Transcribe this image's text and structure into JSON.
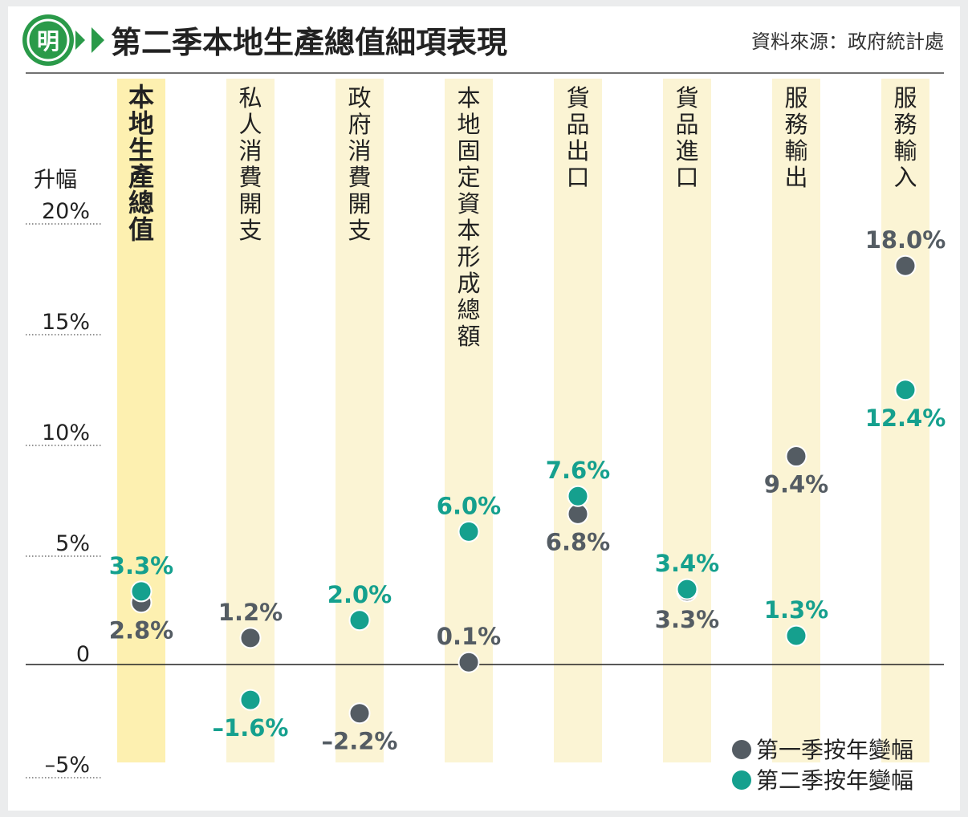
{
  "header": {
    "logo_char": "明",
    "title": "第二季本地生產總值細項表現",
    "source": "資料來源：政府統計處"
  },
  "colors": {
    "q1": "#545c63",
    "q2": "#15a08e",
    "band": "#fbf4d4",
    "band_highlight": "#fdf0b0",
    "logo_green": "#2a9a49",
    "text": "#222222"
  },
  "chart_data": {
    "type": "scatter",
    "title": "第二季本地生產總值細項表現",
    "ylabel": "升幅",
    "ylim": [
      -5,
      20
    ],
    "yticks": [
      {
        "value": 20,
        "label": "20%"
      },
      {
        "value": 15,
        "label": "15%"
      },
      {
        "value": 10,
        "label": "10%"
      },
      {
        "value": 5,
        "label": "5%"
      },
      {
        "value": 0,
        "label": "0"
      },
      {
        "value": -5,
        "label": "–5%"
      }
    ],
    "categories": [
      "本地生產總值",
      "私人消費開支",
      "政府消費開支",
      "本地固定資本形成總額",
      "貨品出口",
      "貨品進口",
      "服務輸出",
      "服務輸入"
    ],
    "highlight_category": "本地生產總值",
    "series": [
      {
        "name": "第一季按年變幅",
        "values": [
          2.8,
          1.2,
          -2.2,
          0.1,
          6.8,
          3.3,
          9.4,
          18.0
        ],
        "labels": [
          "2.8%",
          "1.2%",
          "–2.2%",
          "0.1%",
          "6.8%",
          "3.3%",
          "9.4%",
          "18.0%"
        ],
        "label_side": [
          "below",
          "above",
          "below",
          "above",
          "below",
          "below",
          "below",
          "above"
        ]
      },
      {
        "name": "第二季按年變幅",
        "values": [
          3.3,
          -1.6,
          2.0,
          6.0,
          7.6,
          3.4,
          1.3,
          12.4
        ],
        "labels": [
          "3.3%",
          "–1.6%",
          "2.0%",
          "6.0%",
          "7.6%",
          "3.4%",
          "1.3%",
          "12.4%"
        ],
        "label_side": [
          "above",
          "below",
          "above",
          "above",
          "above",
          "above",
          "above",
          "below"
        ]
      }
    ],
    "legend_position": "bottom-right",
    "grid": "dotted y-gridlines at tick values"
  }
}
